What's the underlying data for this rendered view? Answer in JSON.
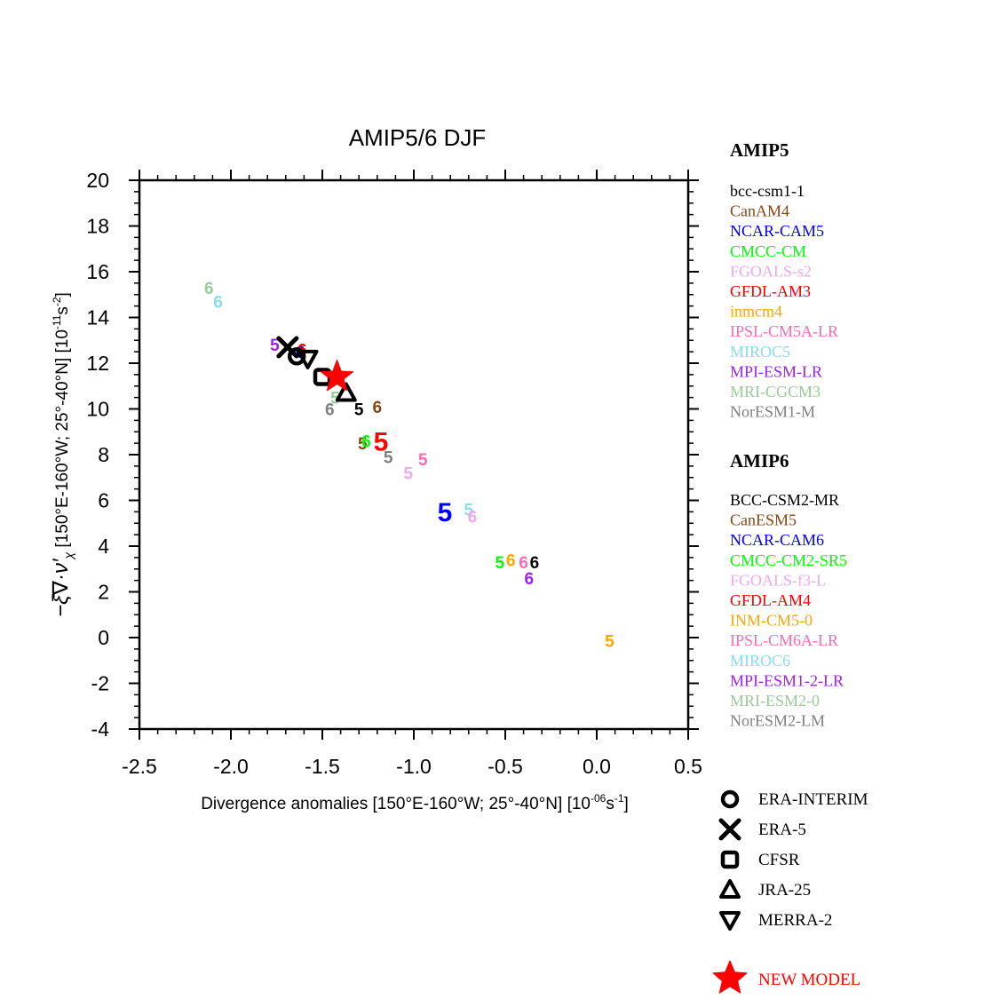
{
  "chart_data": {
    "type": "scatter",
    "title": "AMIP5/6  DJF",
    "xlabel_main": "Divergence anomalies [150°E-160°W; 25°-40°N] [10",
    "xlabel_exp": "-06",
    "xlabel_mid": "s",
    "xlabel_exp2": "-1",
    "xlabel_end": "]",
    "ylabel_expr": "−ξ̄∇·ν′",
    "ylabel_sub": "χ",
    "ylabel_main": "  [150°E-160°W; 25°-40°N] [10",
    "ylabel_exp": "-11",
    "ylabel_mid": "s",
    "ylabel_exp2": "-2",
    "ylabel_end": "]",
    "xlim": [
      -2.5,
      0.5
    ],
    "ylim": [
      -4,
      20
    ],
    "xticks": [
      -2.5,
      -2.0,
      -1.5,
      -1.0,
      -0.5,
      0.0,
      0.5
    ],
    "xtick_labels": [
      "-2.5",
      "-2.0",
      "-1.5",
      "-1.0",
      "-0.5",
      "0.0",
      "0.5"
    ],
    "yticks": [
      -4,
      -2,
      0,
      2,
      4,
      6,
      8,
      10,
      12,
      14,
      16,
      18,
      20
    ],
    "ytick_labels": [
      "-4",
      "-2",
      "0",
      "2",
      "4",
      "6",
      "8",
      "10",
      "12",
      "14",
      "16",
      "18",
      "20"
    ],
    "amip5_header": "AMIP5",
    "amip6_header": "AMIP6",
    "amip5_models": [
      {
        "name": "bcc-csm1-1",
        "color": "#000000",
        "x": -1.3,
        "y": 10.0
      },
      {
        "name": "CanAM4",
        "color": "#8B4513",
        "x": -1.28,
        "y": 8.5
      },
      {
        "name": "NCAR-CAM5",
        "color": "#0000FF",
        "x": -0.83,
        "y": 5.5,
        "big": true
      },
      {
        "name": "CMCC-CM",
        "color": "#00FF00",
        "x": -0.53,
        "y": 3.3
      },
      {
        "name": "FGOALS-s2",
        "color": "#F0A8F0",
        "x": -1.03,
        "y": 7.2
      },
      {
        "name": "GFDL-AM3",
        "color": "#FF0000",
        "x": -1.18,
        "y": 8.6,
        "big": true
      },
      {
        "name": "inmcm4",
        "color": "#FFA500",
        "x": 0.07,
        "y": -0.15
      },
      {
        "name": "IPSL-CM5A-LR",
        "color": "#FF69B4",
        "x": -0.95,
        "y": 7.8
      },
      {
        "name": "MIROC5",
        "color": "#88DDEE",
        "x": -0.7,
        "y": 5.6
      },
      {
        "name": "MPI-ESM-LR",
        "color": "#A020F0",
        "x": -1.76,
        "y": 12.8
      },
      {
        "name": "MRI-CGCM3",
        "color": "#99CC99",
        "x": -1.43,
        "y": 10.5
      },
      {
        "name": "NorESM1-M",
        "color": "#808080",
        "x": -1.14,
        "y": 7.9
      }
    ],
    "amip6_models": [
      {
        "name": "BCC-CSM2-MR",
        "color": "#000000",
        "x": -0.34,
        "y": 3.3
      },
      {
        "name": "CanESM5",
        "color": "#8B4513",
        "x": -1.2,
        "y": 10.1
      },
      {
        "name": "NCAR-CAM6",
        "color": "#0000FF",
        "x": -1.62,
        "y": 12.5
      },
      {
        "name": "CMCC-CM2-SR5",
        "color": "#00FF00",
        "x": -1.26,
        "y": 8.6
      },
      {
        "name": "FGOALS-f3-L",
        "color": "#F0A8F0",
        "x": -0.68,
        "y": 5.3
      },
      {
        "name": "GFDL-AM4",
        "color": "#FF0000",
        "x": -1.61,
        "y": 12.6
      },
      {
        "name": "INM-CM5-0",
        "color": "#FFA500",
        "x": -0.47,
        "y": 3.4
      },
      {
        "name": "IPSL-CM6A-LR",
        "color": "#FF69B4",
        "x": -0.4,
        "y": 3.3
      },
      {
        "name": "MIROC6",
        "color": "#88DDEE",
        "x": -2.07,
        "y": 14.7
      },
      {
        "name": "MPI-ESM1-2-LR",
        "color": "#A020F0",
        "x": -0.37,
        "y": 2.6
      },
      {
        "name": "MRI-ESM2-0",
        "color": "#99CC99",
        "x": -2.12,
        "y": 15.3
      },
      {
        "name": "NorESM2-LM",
        "color": "#808080",
        "x": -1.46,
        "y": 10.0
      }
    ],
    "amip5_digit": "5",
    "amip6_digit": "6",
    "reanalyses": [
      {
        "name": "ERA-INTERIM",
        "shape": "circle-dot",
        "x": -1.64,
        "y": 12.3
      },
      {
        "name": "ERA-5",
        "shape": "cross",
        "x": -1.69,
        "y": 12.7
      },
      {
        "name": "CFSR",
        "shape": "square-dot",
        "x": -1.5,
        "y": 11.4
      },
      {
        "name": "JRA-25",
        "shape": "triangle-up",
        "x": -1.37,
        "y": 10.7
      },
      {
        "name": "MERRA-2",
        "shape": "triangle-down",
        "x": -1.58,
        "y": 12.2
      }
    ],
    "new_model": {
      "name": "NEW MODEL",
      "color": "#FF0000",
      "x": -1.42,
      "y": 11.4
    }
  }
}
